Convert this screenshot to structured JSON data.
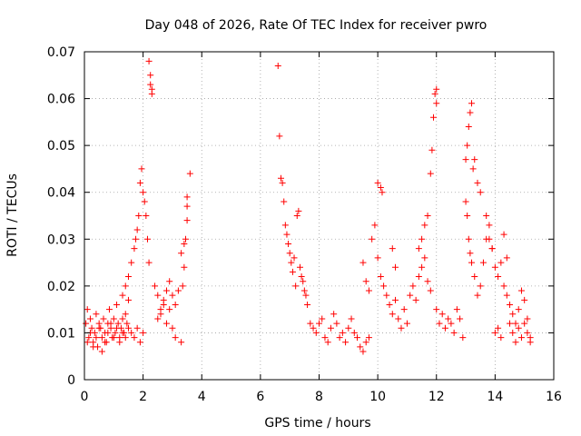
{
  "chart_data": {
    "type": "scatter",
    "title": "Day 048 of 2026, Rate Of TEC Index for receiver pwro",
    "xlabel": "GPS time / hours",
    "ylabel": "ROTI / TECUs",
    "xlim": [
      0,
      16
    ],
    "ylim": [
      0,
      0.07
    ],
    "xticks": [
      "0",
      "2",
      "4",
      "6",
      "8",
      "10",
      "12",
      "14",
      "16"
    ],
    "yticks": [
      "0",
      "0.01",
      "0.02",
      "0.03",
      "0.04",
      "0.05",
      "0.06",
      "0.07"
    ],
    "grid": true,
    "marker": "+",
    "color": "#ff0000",
    "series": [
      {
        "name": "ROTI",
        "x": [
          0.05,
          0.1,
          0.15,
          0.2,
          0.25,
          0.3,
          0.35,
          0.4,
          0.45,
          0.5,
          0.55,
          0.6,
          0.65,
          0.7,
          0.75,
          0.8,
          0.85,
          0.9,
          0.95,
          1.0,
          1.05,
          1.1,
          1.15,
          1.2,
          1.25,
          1.3,
          1.35,
          1.4,
          1.45,
          1.5,
          0.1,
          0.2,
          0.3,
          0.4,
          0.5,
          0.6,
          0.7,
          0.8,
          0.9,
          1.0,
          1.1,
          1.2,
          1.3,
          1.4,
          1.5,
          1.6,
          1.7,
          1.8,
          1.9,
          2.0,
          1.3,
          1.4,
          1.5,
          1.6,
          1.7,
          1.75,
          1.8,
          1.85,
          1.9,
          1.95,
          2.0,
          2.05,
          2.1,
          2.15,
          2.2,
          2.2,
          2.25,
          2.25,
          2.3,
          2.3,
          2.4,
          2.5,
          2.6,
          2.7,
          2.8,
          2.9,
          3.0,
          3.1,
          3.2,
          2.5,
          2.6,
          2.7,
          2.8,
          2.9,
          3.0,
          3.1,
          3.3,
          3.35,
          3.4,
          3.45,
          3.5,
          3.5,
          3.5,
          3.4,
          3.3,
          3.6,
          6.6,
          6.65,
          6.7,
          6.75,
          6.8,
          6.85,
          6.9,
          6.95,
          7.0,
          7.05,
          7.1,
          7.15,
          7.2,
          7.25,
          7.3,
          7.35,
          7.4,
          7.45,
          7.5,
          7.55,
          7.6,
          7.7,
          7.8,
          7.9,
          8.0,
          8.1,
          8.2,
          8.3,
          8.4,
          8.5,
          8.6,
          8.7,
          8.8,
          8.9,
          9.0,
          9.1,
          9.2,
          9.3,
          9.4,
          9.5,
          9.6,
          9.7,
          9.5,
          9.6,
          9.7,
          9.8,
          9.9,
          10.0,
          10.1,
          10.2,
          10.3,
          10.4,
          10.5,
          10.6,
          10.7,
          10.8,
          10.9,
          11.0,
          11.1,
          11.2,
          11.3,
          11.4,
          11.5,
          11.6,
          11.7,
          11.8,
          10.0,
          10.1,
          10.15,
          10.5,
          10.6,
          11.4,
          11.5,
          11.6,
          11.7,
          11.8,
          11.85,
          11.9,
          11.95,
          12.0,
          12.0,
          12.0,
          12.1,
          12.2,
          12.3,
          12.4,
          12.5,
          12.6,
          12.7,
          12.8,
          12.9,
          13.0,
          13.05,
          13.1,
          13.15,
          13.2,
          13.25,
          13.3,
          13.4,
          13.5,
          13.0,
          13.05,
          13.1,
          13.15,
          13.2,
          13.3,
          13.4,
          13.5,
          13.6,
          13.7,
          13.8,
          13.9,
          14.0,
          14.1,
          14.2,
          14.3,
          14.4,
          14.5,
          14.6,
          14.7,
          14.8,
          14.9,
          15.0,
          15.1,
          15.2,
          14.0,
          14.1,
          14.2,
          14.5,
          14.6,
          14.7,
          14.8,
          14.9,
          15.0,
          15.1,
          15.2,
          13.7,
          13.8,
          13.9,
          14.3,
          14.4
        ],
        "y": [
          0.012,
          0.015,
          0.009,
          0.013,
          0.011,
          0.008,
          0.01,
          0.014,
          0.007,
          0.012,
          0.011,
          0.009,
          0.013,
          0.01,
          0.008,
          0.012,
          0.015,
          0.011,
          0.009,
          0.013,
          0.01,
          0.016,
          0.012,
          0.009,
          0.011,
          0.013,
          0.01,
          0.014,
          0.012,
          0.017,
          0.008,
          0.01,
          0.007,
          0.009,
          0.011,
          0.006,
          0.008,
          0.01,
          0.012,
          0.009,
          0.011,
          0.008,
          0.01,
          0.009,
          0.011,
          0.01,
          0.009,
          0.011,
          0.008,
          0.01,
          0.018,
          0.02,
          0.022,
          0.025,
          0.028,
          0.03,
          0.032,
          0.035,
          0.042,
          0.045,
          0.04,
          0.038,
          0.035,
          0.03,
          0.025,
          0.068,
          0.065,
          0.063,
          0.062,
          0.061,
          0.02,
          0.018,
          0.015,
          0.017,
          0.019,
          0.021,
          0.018,
          0.016,
          0.019,
          0.013,
          0.014,
          0.016,
          0.012,
          0.015,
          0.011,
          0.009,
          0.008,
          0.02,
          0.024,
          0.03,
          0.034,
          0.037,
          0.039,
          0.029,
          0.027,
          0.044,
          0.067,
          0.052,
          0.043,
          0.042,
          0.038,
          0.033,
          0.031,
          0.029,
          0.027,
          0.025,
          0.023,
          0.026,
          0.02,
          0.035,
          0.036,
          0.024,
          0.022,
          0.021,
          0.019,
          0.018,
          0.016,
          0.012,
          0.011,
          0.01,
          0.012,
          0.013,
          0.009,
          0.008,
          0.011,
          0.014,
          0.012,
          0.009,
          0.01,
          0.008,
          0.011,
          0.013,
          0.01,
          0.009,
          0.007,
          0.006,
          0.008,
          0.009,
          0.025,
          0.021,
          0.019,
          0.03,
          0.033,
          0.026,
          0.022,
          0.02,
          0.018,
          0.016,
          0.014,
          0.017,
          0.013,
          0.011,
          0.015,
          0.012,
          0.018,
          0.02,
          0.017,
          0.022,
          0.024,
          0.026,
          0.021,
          0.019,
          0.042,
          0.041,
          0.04,
          0.028,
          0.024,
          0.028,
          0.03,
          0.033,
          0.035,
          0.044,
          0.049,
          0.056,
          0.061,
          0.062,
          0.059,
          0.015,
          0.012,
          0.014,
          0.011,
          0.013,
          0.012,
          0.01,
          0.015,
          0.013,
          0.009,
          0.047,
          0.05,
          0.054,
          0.057,
          0.059,
          0.045,
          0.047,
          0.042,
          0.04,
          0.038,
          0.035,
          0.03,
          0.027,
          0.025,
          0.022,
          0.018,
          0.02,
          0.025,
          0.03,
          0.033,
          0.028,
          0.024,
          0.022,
          0.025,
          0.02,
          0.018,
          0.016,
          0.014,
          0.012,
          0.015,
          0.019,
          0.017,
          0.013,
          0.009,
          0.01,
          0.011,
          0.009,
          0.012,
          0.01,
          0.008,
          0.011,
          0.009,
          0.012,
          0.01,
          0.008,
          0.035,
          0.03,
          0.028,
          0.031,
          0.026
        ]
      }
    ]
  }
}
